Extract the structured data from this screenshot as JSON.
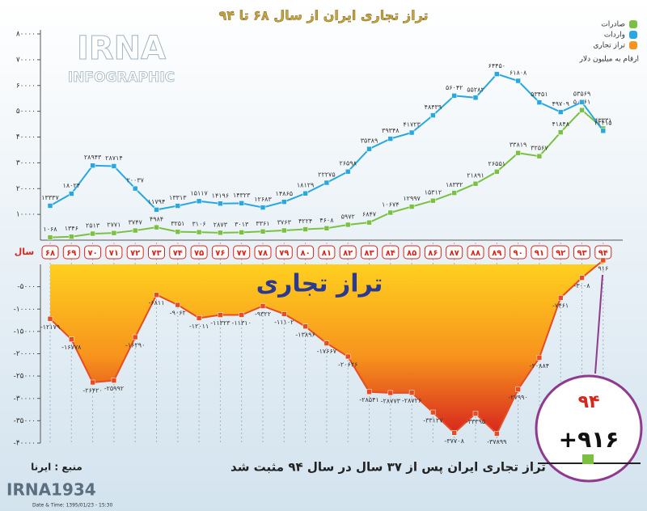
{
  "chart_data": {
    "type": "line",
    "title": "تراز تجاری ایران از سال ۶۸ تا ۹۴",
    "x_label": "سال",
    "unit_note": "ارقام به میلیون دلار",
    "overlay_text": "تراز تجاری",
    "caption": "تراز تجاری ایران پس از ۳۷ سال در سال ۹۴ مثبت شد",
    "source": "منبع : ایرنا",
    "callout": {
      "category": "۹۴",
      "label": "+۹۱۶"
    },
    "categories": [
      "۶۸",
      "۶۹",
      "۷۰",
      "۷۱",
      "۷۲",
      "۷۳",
      "۷۴",
      "۷۵",
      "۷۶",
      "۷۷",
      "۷۸",
      "۷۹",
      "۸۰",
      "۸۱",
      "۸۲",
      "۸۳",
      "۸۴",
      "۸۵",
      "۸۶",
      "۸۷",
      "۸۸",
      "۸۹",
      "۹۰",
      "۹۱",
      "۹۲",
      "۹۳",
      "۹۴"
    ],
    "ylim": [
      0,
      80000
    ],
    "yticks": [
      {
        "value": 10000,
        "label": "۱۰۰۰۰"
      },
      {
        "value": 20000,
        "label": "۲۰۰۰۰"
      },
      {
        "value": 30000,
        "label": "۳۰۰۰۰"
      },
      {
        "value": 40000,
        "label": "۴۰۰۰۰"
      },
      {
        "value": 50000,
        "label": "۵۰۰۰۰"
      },
      {
        "value": 60000,
        "label": "۶۰۰۰۰"
      },
      {
        "value": 70000,
        "label": "۷۰۰۰۰"
      },
      {
        "value": 80000,
        "label": "۸۰۰۰۰"
      }
    ],
    "y2lim": [
      -40000,
      0
    ],
    "y2ticks": [
      {
        "value": -5000,
        "label": "-۵۰۰۰"
      },
      {
        "value": -10000,
        "label": "-۱۰۰۰۰"
      },
      {
        "value": -15000,
        "label": "-۱۵۰۰۰"
      },
      {
        "value": -20000,
        "label": "-۲۰۰۰۰"
      },
      {
        "value": -25000,
        "label": "-۲۵۰۰۰"
      },
      {
        "value": -30000,
        "label": "-۳۰۰۰۰"
      },
      {
        "value": -35000,
        "label": "-۳۵۰۰۰"
      },
      {
        "value": -40000,
        "label": "-۴۰۰۰۰"
      }
    ],
    "series": [
      {
        "name": "صادرات",
        "color": "#7ac143",
        "values": [
          1068,
          1346,
          2513,
          2771,
          3747,
          4984,
          3251,
          3106,
          2873,
          3013,
          3361,
          3763,
          4224,
          4608,
          5972,
          6847,
          10674,
          12997,
          15312,
          18332,
          21891,
          26551,
          33819,
          32567,
          41848,
          50461,
          43331
        ],
        "value_labels": [
          "۱۰۶۸",
          "۱۳۴۶",
          "۲۵۱۳",
          "۲۷۷۱",
          "۳۷۴۷",
          "۴۹۸۴",
          "۳۲۵۱",
          "۳۱۰۶",
          "۲۸۷۳",
          "۳۰۱۳",
          "۳۳۶۱",
          "۳۷۶۳",
          "۴۲۲۴",
          "۴۶۰۸",
          "۵۹۷۲",
          "۶۸۴۷",
          "۱۰۶۷۴",
          "۱۲۹۹۷",
          "۱۵۳۱۲",
          "۱۸۳۳۲",
          "۲۱۸۹۱",
          "۲۶۵۵۱",
          "۳۳۸۱۹",
          "۳۲۵۶۷",
          "۴۱۸۴۸",
          "۵۰۴۶۱",
          "۴۳۳۳۱"
        ]
      },
      {
        "name": "واردات",
        "color": "#29a8e0",
        "values": [
          13337,
          18024,
          28943,
          28714,
          20037,
          11794,
          13313,
          15117,
          14196,
          14323,
          12683,
          14865,
          18129,
          22275,
          26598,
          35389,
          39348,
          41723,
          48439,
          56042,
          55282,
          64450,
          61808,
          53451,
          49709,
          53569,
          42415
        ],
        "value_labels": [
          "۱۳۳۳۷",
          "۱۸۰۲۴",
          "۲۸۹۴۳",
          "۲۸۷۱۴",
          "۲۰۰۳۷",
          "۱۱۷۹۴",
          "۱۳۳۱۳",
          "۱۵۱۱۷",
          "۱۴۱۹۶",
          "۱۴۳۲۳",
          "۱۲۶۸۳",
          "۱۴۸۶۵",
          "۱۸۱۲۹",
          "۲۲۲۷۵",
          "۲۶۵۹۸",
          "۳۵۳۸۹",
          "۳۹۳۴۸",
          "۴۱۷۲۳",
          "۴۸۴۳۹",
          "۵۶۰۴۲",
          "۵۵۲۸۲",
          "۶۴۴۵۰",
          "۶۱۸۰۸",
          "۵۳۴۵۱",
          "۴۹۷۰۹",
          "۵۳۵۶۹",
          "۴۲۴۱۵"
        ]
      },
      {
        "name": "تراز تجاری",
        "color": "#f7941d",
        "axis": "y2",
        "values": [
          -12179,
          -16778,
          -26420,
          -25992,
          -16290,
          -6811,
          -9062,
          -12011,
          -11323,
          -11310,
          -9322,
          -11102,
          -13896,
          -17667,
          -20626,
          -28541,
          -28773,
          -28726,
          -33127,
          -37708,
          -33395,
          -37899,
          -27990,
          -20884,
          -7461,
          -3008,
          916
        ],
        "value_labels": [
          "-۱۲۱۷۹",
          "-۱۶۷۷۸",
          "-۲۶۴۲۰",
          "-۲۵۹۹۲",
          "-۱۶۲۹۰",
          "-۶۸۱۱",
          "-۹۰۶۲",
          "-۱۲۰۱۱",
          "-۱۱۳۲۳",
          "-۱۱۳۱۰",
          "-۹۳۲۲",
          "-۱۱۱۰۲",
          "-۱۳۸۹۶",
          "-۱۷۶۶۷",
          "-۲۰۶۲۶",
          "-۲۸۵۴۱",
          "-۲۸۷۷۳",
          "-۲۸۷۲۶",
          "-۳۳۱۲۷",
          "-۳۷۷۰۸",
          "-۳۳۳۹۵",
          "-۳۷۸۹۹",
          "-۲۷۹۹۰",
          "-۲۰۸۸۴",
          "-۷۴۶۱",
          "-۳۰۰۸",
          "۹۱۶"
        ]
      }
    ]
  },
  "branding": {
    "logo": "IRNA",
    "logo_sub": "INFOGRAPHIC",
    "footer_logo": "IRNA1934",
    "timestamp": "Date & Time: 1395/01/23 - 15:30"
  }
}
